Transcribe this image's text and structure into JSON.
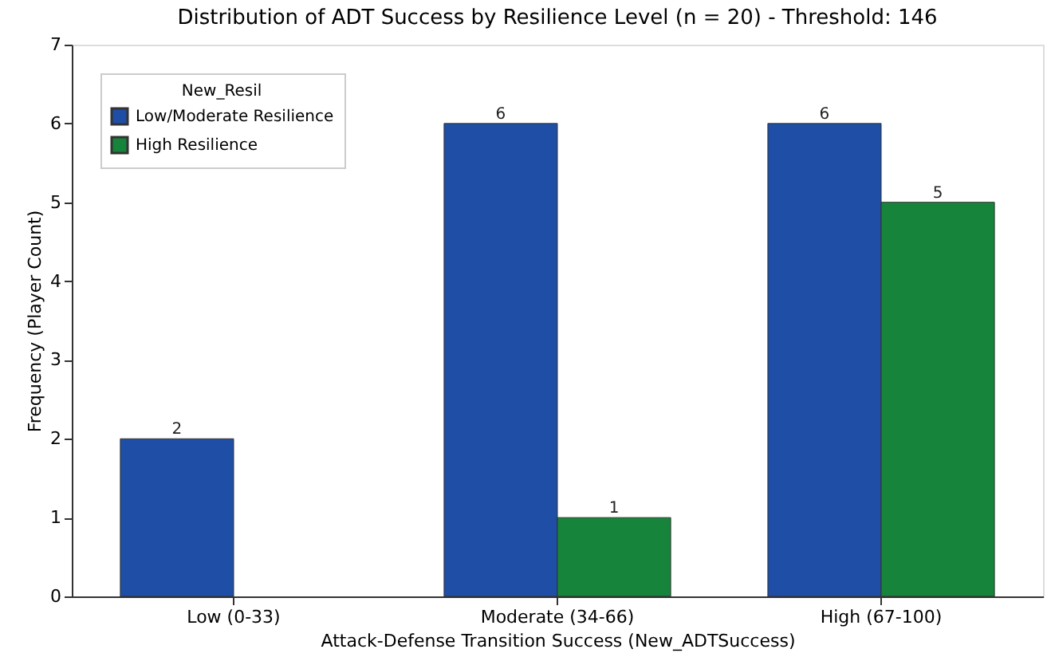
{
  "chart_data": {
    "type": "bar",
    "title": "Distribution of ADT Success by Resilience Level (n = 20) - Threshold: 146",
    "xlabel": "Attack-Defense Transition Success (New_ADTSuccess)",
    "ylabel": "Frequency (Player Count)",
    "legend_title": "New_Resil",
    "categories": [
      "Low (0-33)",
      "Moderate (34-66)",
      "High (67-100)"
    ],
    "series": [
      {
        "name": "Low/Moderate Resilience",
        "color": "#1f4ea6",
        "values": [
          2,
          6,
          6
        ]
      },
      {
        "name": "High Resilience",
        "color": "#16843a",
        "values": [
          null,
          1,
          5
        ]
      }
    ],
    "ylim": [
      0,
      7
    ],
    "yticks": [
      0,
      1,
      2,
      3,
      4,
      5,
      6,
      7
    ],
    "grid": false,
    "legend": "top left",
    "data_labels": true
  }
}
